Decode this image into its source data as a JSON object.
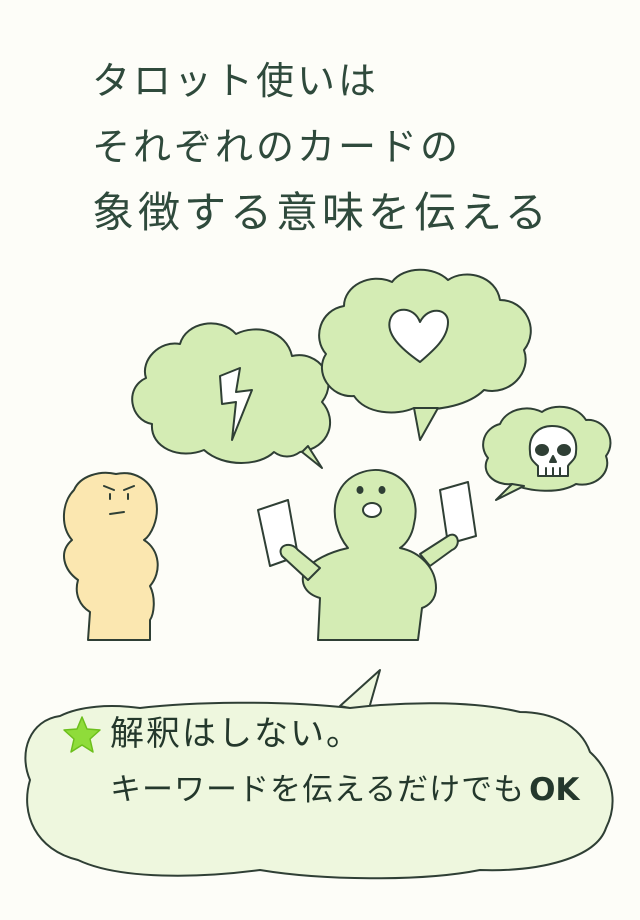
{
  "title": {
    "line1": "タロット使いは",
    "line2": "それぞれのカードの",
    "line3": "象徴する意味を伝える"
  },
  "caption": {
    "line1": "解釈はしない。",
    "line2_text": "キーワードを伝えるだけでも",
    "line2_ok": "OK"
  },
  "icons": {
    "bubble_left": "lightning-icon",
    "bubble_center": "heart-icon",
    "bubble_right": "skull-icon",
    "caption_bullet": "star-icon"
  },
  "colors": {
    "bubble_fill": "#d4ecb4",
    "reader_fill": "#d4ecb4",
    "listener_fill": "#fbe7b0",
    "outline": "#2f3f35",
    "star": "#8fdc3a",
    "caption_bubble_fill": "#eef7de"
  }
}
